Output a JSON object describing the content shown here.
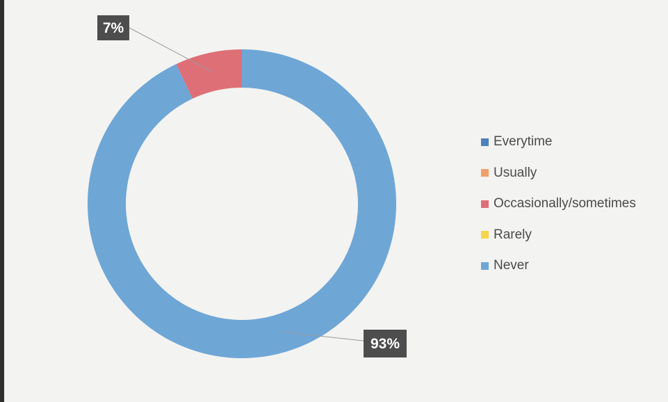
{
  "chart_data": {
    "type": "pie",
    "style": "donut",
    "legend_position": "right",
    "categories": [
      "Everytime",
      "Usually",
      "Occasionally/sometimes",
      "Rarely",
      "Never"
    ],
    "values": [
      0,
      0,
      7,
      0,
      93
    ],
    "colors": [
      "#4e81bd",
      "#f0a06a",
      "#de6f76",
      "#f7d54a",
      "#6ea6d6"
    ],
    "data_labels": [
      {
        "category": "Occasionally/sometimes",
        "text": "7%"
      },
      {
        "category": "Never",
        "text": "93%"
      }
    ],
    "label_box_color": "#4d4d4d"
  }
}
